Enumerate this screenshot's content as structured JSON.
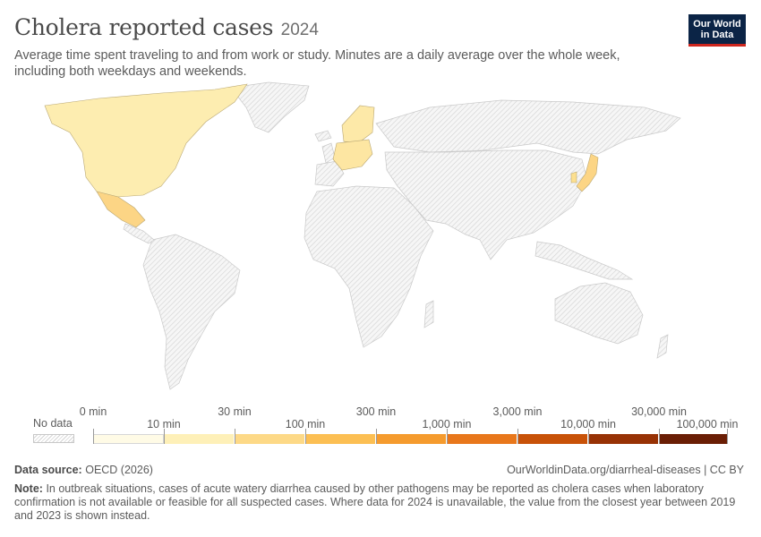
{
  "header": {
    "title": "Cholera reported cases",
    "year": "2024",
    "subtitle": "Average time spent traveling to and from work or study. Minutes are a daily average over the whole week, including both weekdays and weekends."
  },
  "logo": {
    "line1": "Our World",
    "line2": "in Data",
    "bg_color": "#0b2446",
    "accent_color": "#ce261e"
  },
  "map": {
    "no_data_color": "#e6e6e6",
    "regions_with_data": [
      {
        "region": "United States & Canada",
        "color": "#fdedb0"
      },
      {
        "region": "Mexico",
        "color": "#fcd585"
      },
      {
        "region": "Scandinavia",
        "color": "#fde9a8"
      },
      {
        "region": "Central Europe",
        "color": "#fde6a2"
      },
      {
        "region": "Japan",
        "color": "#fcd585"
      },
      {
        "region": "Korea",
        "color": "#fde08f"
      }
    ]
  },
  "legend": {
    "no_data_label": "No data",
    "bins": [
      {
        "color": "#fffbe6"
      },
      {
        "color": "#fef0b8"
      },
      {
        "color": "#fdd987"
      },
      {
        "color": "#fcbf53"
      },
      {
        "color": "#f59b2e"
      },
      {
        "color": "#e8771b"
      },
      {
        "color": "#c85208"
      },
      {
        "color": "#973205"
      },
      {
        "color": "#6a1e05"
      }
    ],
    "ticks": [
      "0 min",
      "10 min",
      "30 min",
      "100 min",
      "300 min",
      "1,000 min",
      "3,000 min",
      "10,000 min",
      "30,000 min",
      "100,000 min"
    ]
  },
  "footer": {
    "source_label": "Data source:",
    "source_value": "OECD (2026)",
    "url": "OurWorldinData.org/diarrheal-diseases | CC BY",
    "note_label": "Note:",
    "note_text": "In outbreak situations, cases of acute watery diarrhea caused by other pathogens may be reported as cholera cases when laboratory confirmation is not available or feasible for all suspected cases. Where data for 2024 is unavailable, the value from the closest year between 2019 and 2023 is shown instead."
  }
}
